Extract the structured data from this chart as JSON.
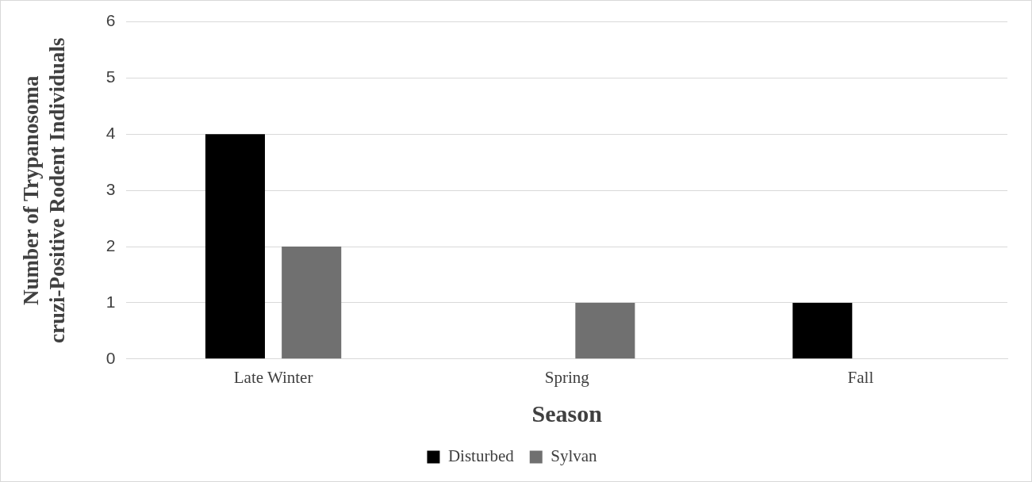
{
  "chart_data": {
    "type": "bar",
    "xlabel": "Season",
    "ylabel": "Number of Trypanosoma cruzi-Positive Rodent Individuals",
    "categories": [
      "Late Winter",
      "Spring",
      "Fall"
    ],
    "series": [
      {
        "name": "Disturbed",
        "color": "#000000",
        "values": [
          4,
          0,
          1
        ]
      },
      {
        "name": "Sylvan",
        "color": "#707070",
        "values": [
          2,
          1,
          0
        ]
      }
    ],
    "ylim": [
      0,
      6
    ],
    "yticks": [
      0,
      1,
      2,
      3,
      4,
      5,
      6
    ],
    "grid": "y",
    "legend": "bottom"
  }
}
